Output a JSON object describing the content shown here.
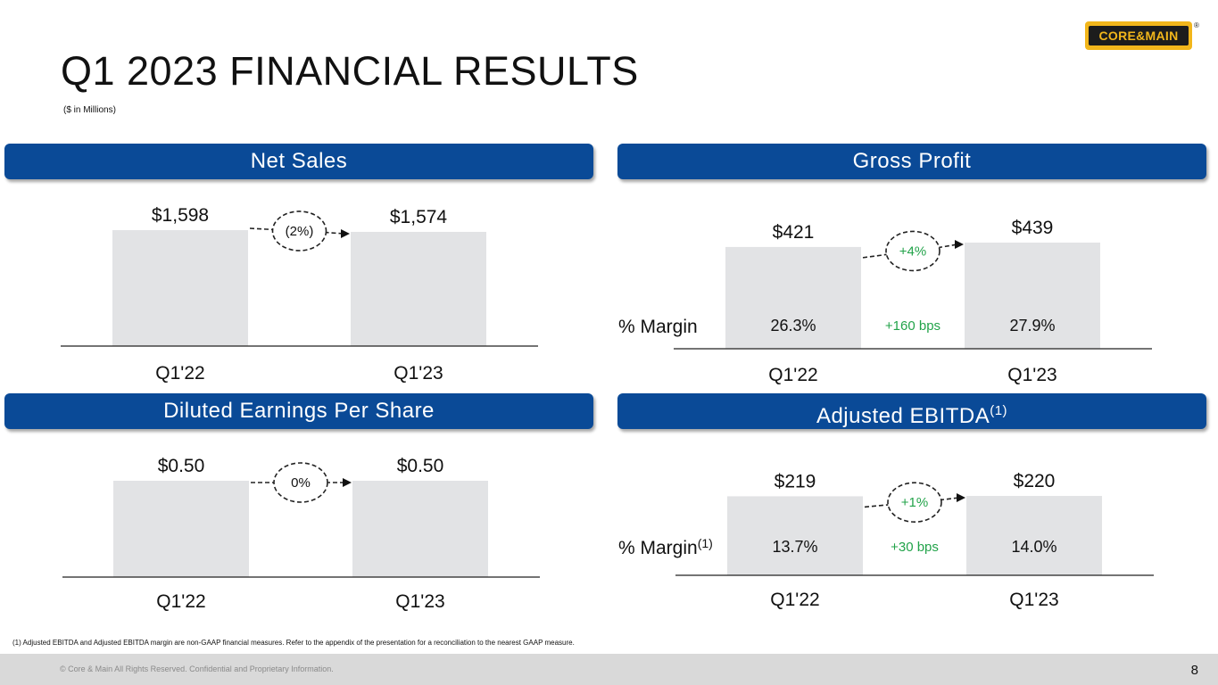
{
  "page": {
    "title": "Q1 2023 FINANCIAL RESULTS",
    "subtitle": "($ in Millions)",
    "logo_text": "CORE&MAIN",
    "logo_mark": "®",
    "footnote": "(1) Adjusted EBITDA and Adjusted EBITDA margin are non-GAAP financial measures. Refer to the appendix of the presentation for a reconciliation to the nearest GAAP measure.",
    "footer_text": "© Core & Main  All Rights Reserved. Confidential and Proprietary Information.",
    "page_number": "8"
  },
  "headers": {
    "net_sales": "Net Sales",
    "gross_profit": "Gross Profit",
    "eps": "Diluted Earnings Per Share",
    "ebitda": "Adjusted EBITDA",
    "ebitda_sup": "(1)"
  },
  "colors": {
    "header_bg": "#0a4a97",
    "bar": "#e2e3e5",
    "positive_change": "#22a34a",
    "logo_yellow": "#f2b61b"
  },
  "chart_data": [
    {
      "id": "net_sales",
      "type": "bar",
      "title": "Net Sales",
      "categories": [
        "Q1'22",
        "Q1'23"
      ],
      "values": [
        1598,
        1574
      ],
      "value_labels": [
        "$1,598",
        "$1,574"
      ],
      "change_label": "(2%)",
      "ylim": [
        0,
        1800
      ]
    },
    {
      "id": "gross_profit",
      "type": "bar",
      "title": "Gross Profit",
      "categories": [
        "Q1'22",
        "Q1'23"
      ],
      "values": [
        421,
        439
      ],
      "value_labels": [
        "$421",
        "$439"
      ],
      "change_label": "+4%",
      "margin_label": "% Margin",
      "margins": [
        "26.3%",
        "27.9%"
      ],
      "margin_change": "+160 bps",
      "ylim": [
        0,
        550
      ]
    },
    {
      "id": "eps",
      "type": "bar",
      "title": "Diluted Earnings Per Share",
      "categories": [
        "Q1'22",
        "Q1'23"
      ],
      "values": [
        0.5,
        0.5
      ],
      "value_labels": [
        "$0.50",
        "$0.50"
      ],
      "change_label": "0%",
      "ylim": [
        0,
        0.6
      ]
    },
    {
      "id": "ebitda",
      "type": "bar",
      "title": "Adjusted EBITDA(1)",
      "categories": [
        "Q1'22",
        "Q1'23"
      ],
      "values": [
        219,
        220
      ],
      "value_labels": [
        "$219",
        "$220"
      ],
      "change_label": "+1%",
      "margin_label": "% Margin",
      "margin_label_sup": "(1)",
      "margins": [
        "13.7%",
        "14.0%"
      ],
      "margin_change": "+30 bps",
      "ylim": [
        0,
        260
      ]
    }
  ]
}
